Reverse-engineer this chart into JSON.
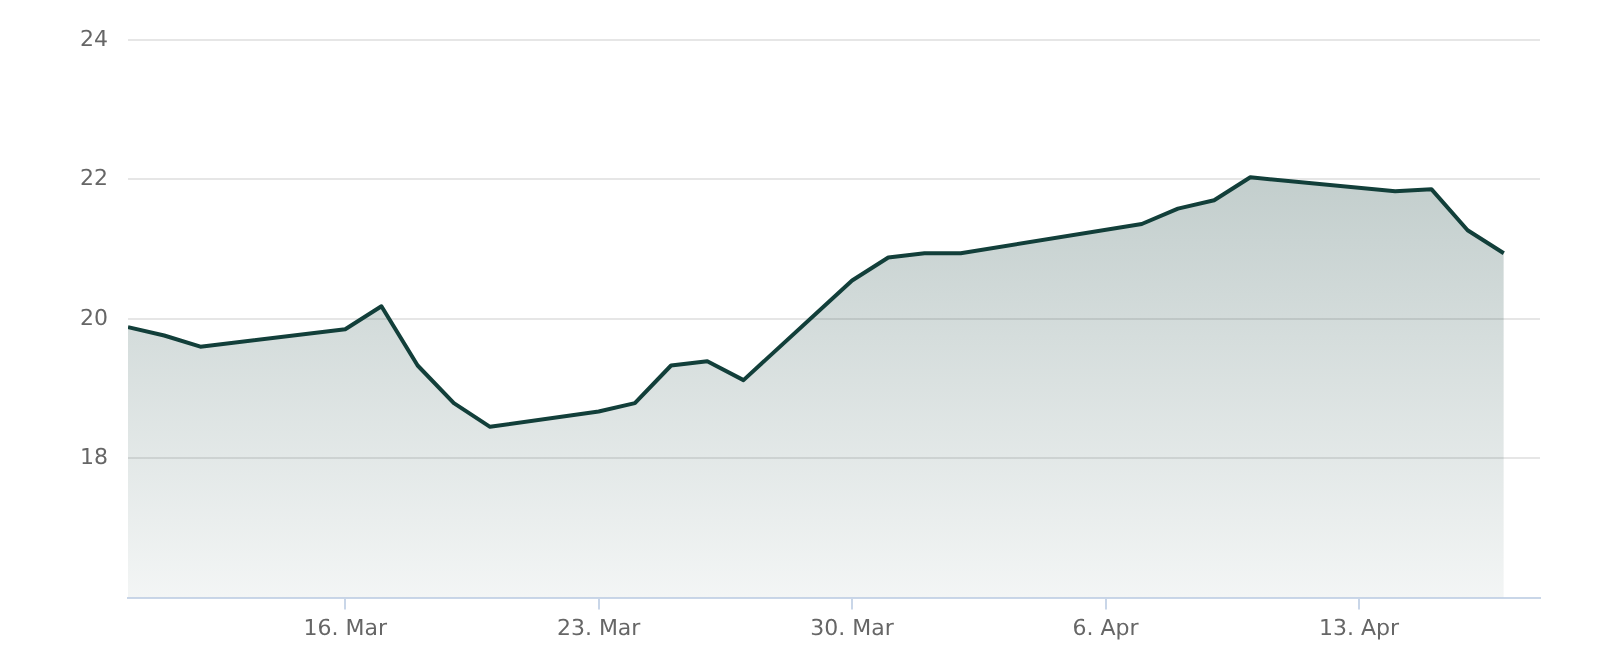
{
  "chart_data": {
    "type": "area",
    "x": [
      "--03-10",
      "--03-11",
      "--03-12",
      "--03-16",
      "--03-17",
      "--03-18",
      "--03-19",
      "--03-20",
      "--03-23",
      "--03-24",
      "--03-25",
      "--03-26",
      "--03-27",
      "--03-30",
      "--03-31",
      "--04-01",
      "--04-02",
      "--04-07",
      "--04-08",
      "--04-09",
      "--04-10",
      "--04-14",
      "--04-15",
      "--04-16",
      "--04-17"
    ],
    "series": [
      {
        "color": "#123f3a",
        "values": [
          19.88,
          19.76,
          19.6,
          19.85,
          20.18,
          19.33,
          18.79,
          18.45,
          18.67,
          18.79,
          19.33,
          19.39,
          19.12,
          20.55,
          20.88,
          20.94,
          20.94,
          21.36,
          21.58,
          21.7,
          22.03,
          21.83,
          21.86,
          21.27,
          20.94
        ]
      }
    ],
    "xlim": [
      "--03-10",
      "--04-18"
    ],
    "xticks": [
      {
        "value": "--03-16",
        "label": "16. Mar"
      },
      {
        "value": "--03-23",
        "label": "23. Mar"
      },
      {
        "value": "--03-30",
        "label": "30. Mar"
      },
      {
        "value": "--04-06",
        "label": "6. Apr"
      },
      {
        "value": "--04-13",
        "label": "13. Apr"
      }
    ],
    "ylim": [
      16,
      24
    ],
    "yticks": [
      18,
      20,
      22,
      24
    ],
    "grid": "y",
    "legend": false,
    "marker": "none",
    "line_style": "solid"
  }
}
